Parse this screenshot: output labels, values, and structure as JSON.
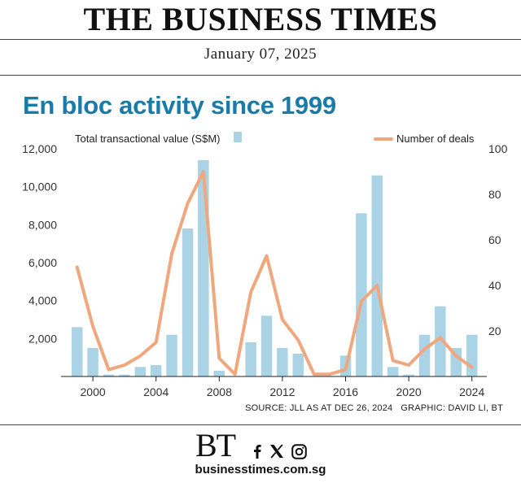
{
  "masthead": {
    "title": "THE BUSINESS TIMES"
  },
  "header": {
    "date": "January 07, 2025"
  },
  "chart_data": {
    "type": "bar",
    "title": "En bloc activity since 1999",
    "x": [
      1999,
      2000,
      2001,
      2002,
      2003,
      2004,
      2005,
      2006,
      2007,
      2008,
      2009,
      2010,
      2011,
      2012,
      2013,
      2014,
      2015,
      2016,
      2017,
      2018,
      2019,
      2020,
      2021,
      2022,
      2023,
      2024
    ],
    "x_ticks": [
      "2000",
      "2004",
      "2008",
      "2012",
      "2016",
      "2020",
      "2024"
    ],
    "series": [
      {
        "name": "Total transactional value (S$M)",
        "type": "bar",
        "axis": "left",
        "color": "#aad4e6",
        "values": [
          2600,
          1500,
          100,
          100,
          500,
          600,
          2200,
          7800,
          11400,
          300,
          0,
          1800,
          3200,
          1500,
          1200,
          0,
          0,
          1100,
          8600,
          10600,
          500,
          100,
          2200,
          3700,
          1500,
          2200
        ]
      },
      {
        "name": "Number of deals",
        "type": "line",
        "axis": "right",
        "color": "#f0a77e",
        "values": [
          48,
          22,
          3,
          5,
          9,
          15,
          54,
          76,
          90,
          8,
          1,
          37,
          53,
          25,
          16,
          1,
          1,
          3,
          33,
          40,
          7,
          5,
          12,
          17,
          9,
          4
        ]
      }
    ],
    "ylim_left": [
      0,
      12000
    ],
    "yticks_left": [
      "12,000",
      "10,000",
      "8,000",
      "6,000",
      "4,000",
      "2,000"
    ],
    "ylim_right": [
      0,
      100
    ],
    "yticks_right": [
      "100",
      "80",
      "60",
      "40",
      "20"
    ],
    "grid": false,
    "legend": "top",
    "source": "SOURCE: JLL AS AT DEC 26, 2024",
    "credit": "GRAPHIC: DAVID LI, BT"
  },
  "footer": {
    "logo": "BT",
    "url": "businesstimes.com.sg",
    "icons": [
      "facebook-icon",
      "x-icon",
      "instagram-icon"
    ]
  }
}
